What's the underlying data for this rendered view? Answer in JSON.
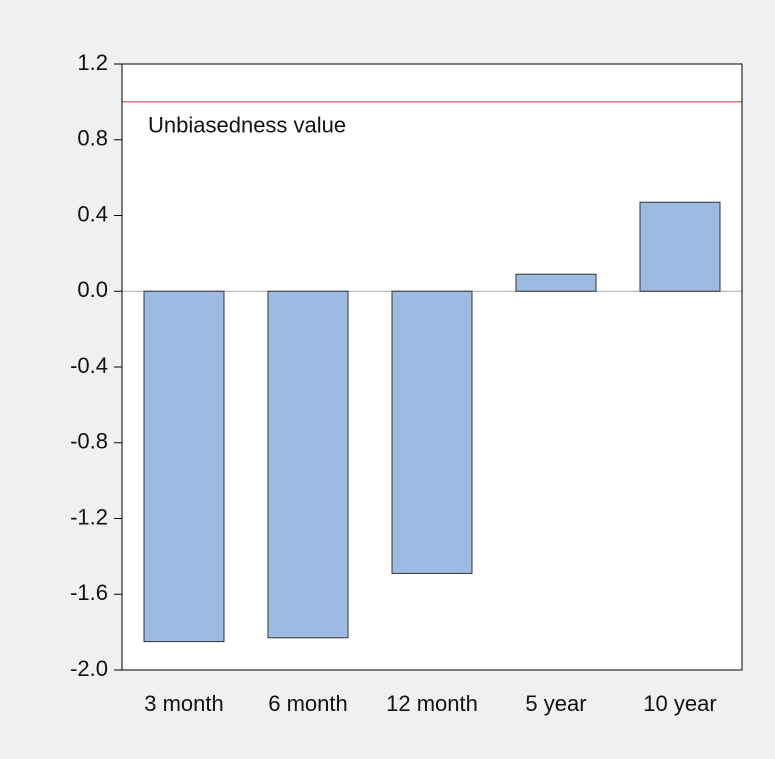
{
  "chart_data": {
    "type": "bar",
    "categories": [
      "3 month",
      "6 month",
      "12 month",
      "5 year",
      "10 year"
    ],
    "values": [
      -1.85,
      -1.83,
      -1.49,
      0.09,
      0.47
    ],
    "color": "#9dbbe2",
    "ylim": [
      -2.0,
      1.2
    ],
    "yticks": [
      {
        "value": -2.0,
        "label": "-2.0"
      },
      -1.6,
      -1.2,
      -0.8,
      -0.4,
      {
        "value": 0,
        "label": "0.0"
      },
      0.4,
      0.8,
      1.2
    ],
    "reference_line": {
      "value": 1.0,
      "label": "Unbiasedness value",
      "color": "#e03030"
    },
    "grid": false
  }
}
